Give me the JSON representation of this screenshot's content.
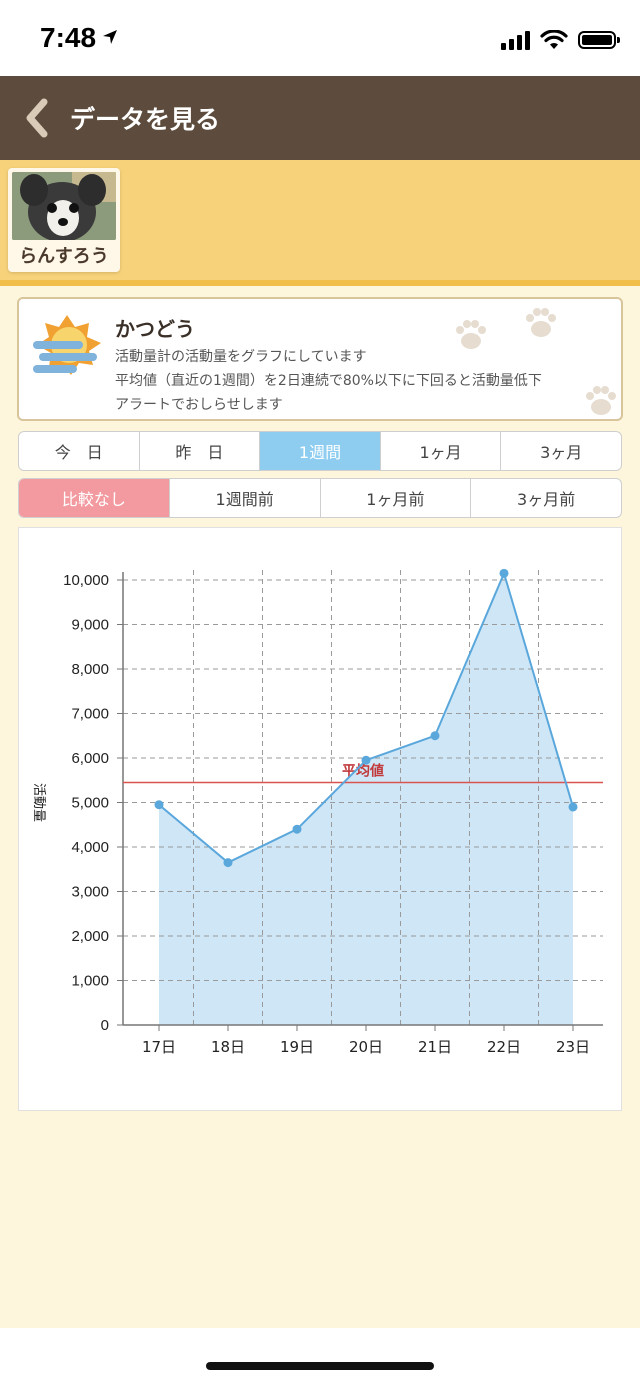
{
  "status_bar": {
    "time": "7:48"
  },
  "nav": {
    "title": "データを見る"
  },
  "profile": {
    "name": "らんすろう"
  },
  "info": {
    "title": "かつどう",
    "desc_line1": "活動量計の活動量をグラフにしています",
    "desc_line2": "平均値（直近の1週間）を2日連続で80%以下に下回ると活動量低下",
    "desc_line3": "アラートでおしらせします"
  },
  "period_tabs": [
    {
      "label": "今　日"
    },
    {
      "label": "昨　日"
    },
    {
      "label": "1週間",
      "active": true
    },
    {
      "label": "1ヶ月"
    },
    {
      "label": "3ヶ月"
    }
  ],
  "compare_tabs": [
    {
      "label": "比較なし",
      "active": true
    },
    {
      "label": "1週間前"
    },
    {
      "label": "1ヶ月前"
    },
    {
      "label": "3ヶ月前"
    }
  ],
  "colors": {
    "nav_bg": "#5d4c3d",
    "profile_band": "#f7d27a",
    "period_active": "#8ecdf0",
    "compare_active": "#f29aa0",
    "series_line": "#5aa7dc",
    "series_fill": "#cfe6f6",
    "average_line": "#d9534f"
  },
  "chart_data": {
    "type": "area",
    "ylabel": "活動量",
    "xlabel": "",
    "categories": [
      "17日",
      "18日",
      "19日",
      "20日",
      "21日",
      "22日",
      "23日"
    ],
    "values": [
      4950,
      3650,
      4400,
      5950,
      6500,
      10150,
      4900
    ],
    "ylim": [
      0,
      10000
    ],
    "yticks": [
      "0",
      "1,000",
      "2,000",
      "3,000",
      "4,000",
      "5,000",
      "6,000",
      "7,000",
      "8,000",
      "9,000",
      "10,000"
    ],
    "average": {
      "label": "平均値",
      "value": 5450
    },
    "grid": true
  }
}
